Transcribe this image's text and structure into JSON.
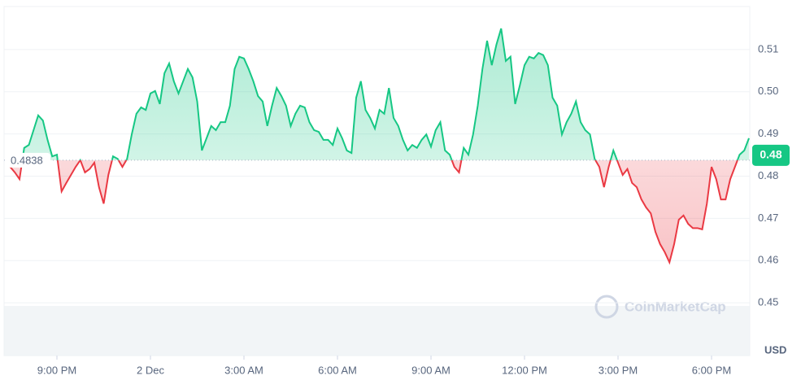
{
  "chart_data": {
    "type": "line",
    "values": [
      0.4832,
      0.4822,
      0.4809,
      0.4793,
      0.4867,
      0.4874,
      0.4909,
      0.4944,
      0.4932,
      0.4886,
      0.4847,
      0.4851,
      0.4764,
      0.4784,
      0.4803,
      0.4822,
      0.4838,
      0.4809,
      0.4817,
      0.4832,
      0.4774,
      0.4735,
      0.4803,
      0.4847,
      0.4841,
      0.4822,
      0.4841,
      0.4899,
      0.4948,
      0.4963,
      0.4957,
      0.4996,
      0.5002,
      0.4971,
      0.5044,
      0.5067,
      0.5025,
      0.4996,
      0.5025,
      0.5054,
      0.5034,
      0.4977,
      0.4861,
      0.489,
      0.4919,
      0.4909,
      0.4928,
      0.4928,
      0.4967,
      0.5054,
      0.5083,
      0.5079,
      0.5054,
      0.5025,
      0.499,
      0.4977,
      0.4919,
      0.4967,
      0.5009,
      0.499,
      0.4967,
      0.4919,
      0.4948,
      0.4967,
      0.4963,
      0.4928,
      0.4909,
      0.4905,
      0.4886,
      0.4886,
      0.4874,
      0.4913,
      0.489,
      0.4861,
      0.4855,
      0.4986,
      0.5025,
      0.4957,
      0.4938,
      0.4913,
      0.4957,
      0.4948,
      0.5009,
      0.4938,
      0.4919,
      0.4886,
      0.4861,
      0.4874,
      0.4867,
      0.4886,
      0.4899,
      0.487,
      0.4909,
      0.4928,
      0.4861,
      0.4851,
      0.4822,
      0.4809,
      0.4867,
      0.4851,
      0.4899,
      0.4967,
      0.5054,
      0.5121,
      0.5063,
      0.5112,
      0.515,
      0.5073,
      0.5083,
      0.4971,
      0.5015,
      0.5063,
      0.5083,
      0.5079,
      0.5092,
      0.5087,
      0.5063,
      0.4986,
      0.4967,
      0.4899,
      0.4928,
      0.4948,
      0.4977,
      0.4928,
      0.4909,
      0.4899,
      0.4841,
      0.4822,
      0.4774,
      0.4822,
      0.4861,
      0.4832,
      0.4803,
      0.4817,
      0.4784,
      0.4774,
      0.4745,
      0.4726,
      0.4712,
      0.4668,
      0.4639,
      0.462,
      0.4596,
      0.4639,
      0.4697,
      0.4707,
      0.4687,
      0.4677,
      0.4677,
      0.4674,
      0.4735,
      0.4822,
      0.4793,
      0.4745,
      0.4745,
      0.4793,
      0.4822,
      0.4851,
      0.4861,
      0.489
    ],
    "up_color": "#16c784",
    "down_color": "#ea3943",
    "baseline": 0.4838,
    "price_label": "0.48",
    "ylim": [
      0.4375,
      0.5202
    ],
    "yticks": [
      0.45,
      0.46,
      0.47,
      0.48,
      0.49,
      {
        "value": 0.5,
        "label": "0.50"
      },
      0.51
    ],
    "xticks": [
      {
        "value": 11,
        "label": "9:00 PM"
      },
      {
        "value": 31,
        "label": "2 Dec"
      },
      {
        "value": 51,
        "label": "3:00 AM"
      },
      {
        "value": 71,
        "label": "6:00 AM"
      },
      {
        "value": 91,
        "label": "9:00 AM"
      },
      {
        "value": 111,
        "label": "12:00 PM"
      },
      {
        "value": 131,
        "label": "3:00 PM"
      },
      {
        "value": 151,
        "label": "6:00 PM"
      }
    ],
    "unit": "USD",
    "watermark": "CoinMarketCap",
    "grid": true
  }
}
